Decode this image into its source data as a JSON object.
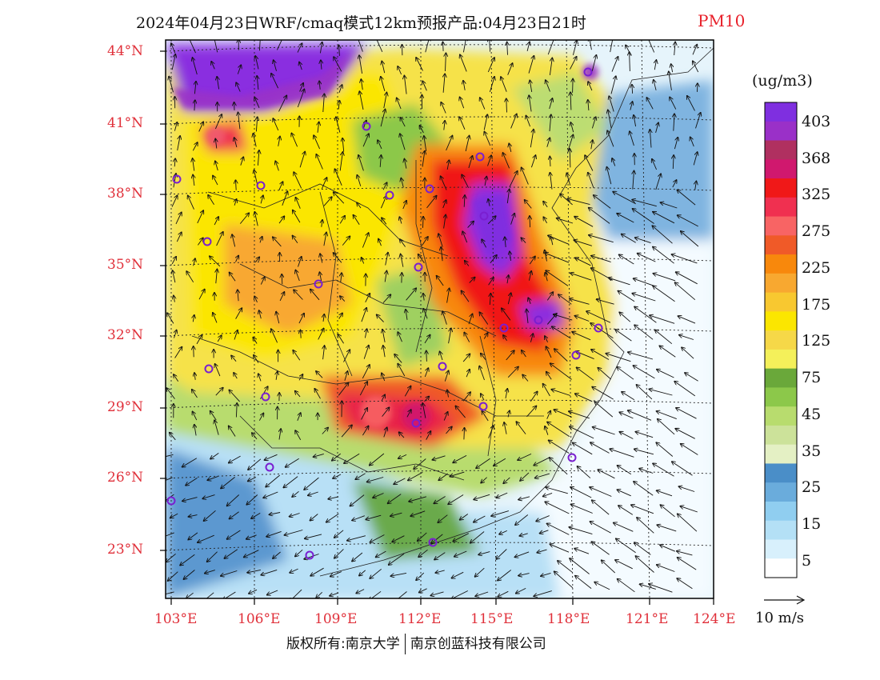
{
  "title": {
    "main": "2024年04月23日WRF/cmaq模式12km预报产品:04月23日21时",
    "variable": "PM10",
    "variable_color": "#e8202a"
  },
  "map": {
    "lat_labels": [
      "44°N",
      "41°N",
      "38°N",
      "35°N",
      "32°N",
      "29°N",
      "26°N",
      "23°N"
    ],
    "lon_labels": [
      "103°E",
      "106°E",
      "109°E",
      "112°E",
      "115°E",
      "118°E",
      "121°E",
      "124°E"
    ],
    "label_color": "#e0303a"
  },
  "colorbar": {
    "unit": "(ug/m3)",
    "labels": [
      "403",
      "368",
      "325",
      "275",
      "225",
      "175",
      "125",
      "75",
      "45",
      "35",
      "25",
      "15",
      "5"
    ],
    "colors": [
      "#7f2fe0",
      "#9a30c8",
      "#b03060",
      "#d0186e",
      "#f01818",
      "#f03050",
      "#f86464",
      "#f05a28",
      "#f8880c",
      "#f8a830",
      "#f8c830",
      "#fbe600",
      "#f6d848",
      "#f4f05a",
      "#6aa83a",
      "#8cc84a",
      "#b8dc6e",
      "#cce29a",
      "#e4f0c4",
      "#4a8ec8",
      "#6aacdc",
      "#90cef0",
      "#b4e0f6",
      "#d8f0fc",
      "#ffffff"
    ]
  },
  "wind_reference": {
    "label": "10 m/s"
  },
  "footer": {
    "left": "版权所有:南京大学",
    "right": "南京创蓝科技有限公司"
  }
}
